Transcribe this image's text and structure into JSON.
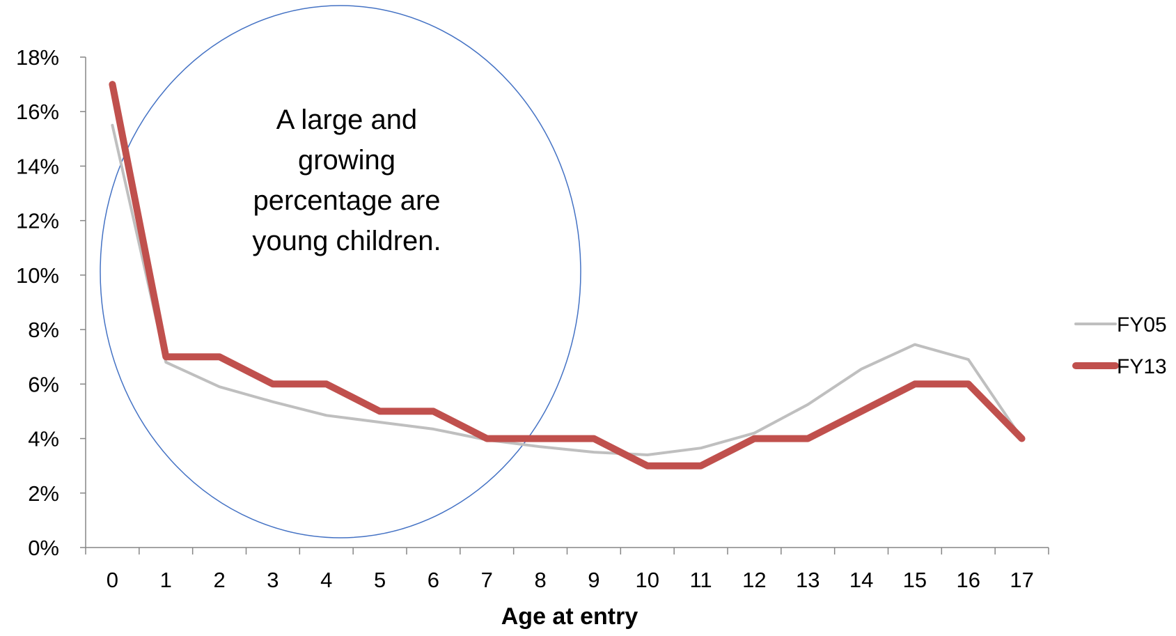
{
  "chart_data": {
    "type": "line",
    "title": "",
    "xlabel": "Age at entry",
    "ylabel": "",
    "x": [
      "0",
      "1",
      "2",
      "3",
      "4",
      "5",
      "6",
      "7",
      "8",
      "9",
      "10",
      "11",
      "12",
      "13",
      "14",
      "15",
      "16",
      "17"
    ],
    "ylim": [
      0,
      18
    ],
    "yticks": [
      0,
      2,
      4,
      6,
      8,
      10,
      12,
      14,
      16,
      18
    ],
    "ytick_labels": [
      "0%",
      "2%",
      "4%",
      "6%",
      "8%",
      "10%",
      "12%",
      "14%",
      "16%",
      "18%"
    ],
    "y_unit": "%",
    "grid": false,
    "legend_position": "right",
    "series": [
      {
        "name": "FY05",
        "color": "#bfbfbf",
        "values": [
          15.5,
          6.8,
          5.9,
          5.35,
          4.85,
          4.6,
          4.35,
          3.95,
          3.7,
          3.5,
          3.4,
          3.65,
          4.2,
          5.25,
          6.55,
          7.45,
          6.9,
          4.0
        ]
      },
      {
        "name": "FY13",
        "color": "#c0504d",
        "values": [
          17,
          7,
          7,
          6,
          6,
          5,
          5,
          4,
          4,
          4,
          3,
          3,
          4,
          4,
          5,
          6,
          6,
          4
        ]
      }
    ],
    "annotations": [
      {
        "shape": "ellipse",
        "color": "#4472c4",
        "lines": [
          "A large and",
          "growing",
          "percentage are",
          "young children."
        ]
      }
    ]
  }
}
